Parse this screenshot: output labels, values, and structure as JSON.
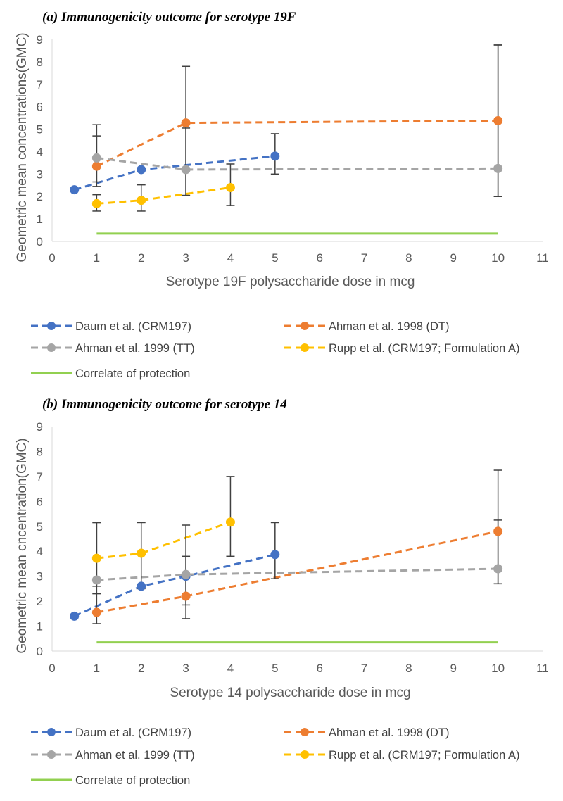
{
  "colors": {
    "daum": "#4472C4",
    "ahman1998": "#ED7D31",
    "ahman1999": "#A5A5A5",
    "rupp": "#FFC000",
    "correlate": "#92D050",
    "errorbar": "#404040"
  },
  "chart_data": [
    {
      "type": "line",
      "title": "(a) Immunogenicity outcome for serotype 19F",
      "xlabel": "Serotype 19F polysaccharide dose in mcg",
      "ylabel": "Geometric mean concentrations(GMC)",
      "xlim": [
        0,
        11
      ],
      "ylim": [
        0,
        9
      ],
      "xticks": [
        "0",
        "1",
        "2",
        "3",
        "4",
        "5",
        "6",
        "7",
        "8",
        "9",
        "10",
        "11"
      ],
      "yticks": [
        "0",
        "1",
        "2",
        "3",
        "4",
        "5",
        "6",
        "7",
        "8",
        "9"
      ],
      "series": [
        {
          "name": "Daum et al. (CRM197)",
          "color_key": "daum",
          "style": "dashed",
          "x": [
            0.5,
            2,
            5
          ],
          "y": [
            2.3,
            3.2,
            3.8
          ],
          "err_low": [
            null,
            null,
            3.0
          ],
          "err_high": [
            null,
            null,
            4.8
          ]
        },
        {
          "name": "Ahman et al. 1998 (DT)",
          "color_key": "ahman1998",
          "style": "dashed",
          "x": [
            1,
            3,
            10
          ],
          "y": [
            3.35,
            5.28,
            5.38
          ],
          "err_low": [
            2.45,
            2.05,
            2.0
          ],
          "err_high": [
            4.7,
            7.8,
            8.75
          ]
        },
        {
          "name": "Ahman et al. 1999 (TT)",
          "color_key": "ahman1999",
          "style": "dashed",
          "x": [
            1,
            3,
            10
          ],
          "y": [
            3.72,
            3.2,
            3.25
          ],
          "err_low": [
            2.65,
            2.05,
            2.0
          ],
          "err_high": [
            5.2,
            5.05,
            8.75
          ]
        },
        {
          "name": "Rupp et al. (CRM197; Formulation A)",
          "color_key": "rupp",
          "style": "dashed",
          "x": [
            1,
            2,
            4
          ],
          "y": [
            1.68,
            1.83,
            2.4
          ],
          "err_low": [
            1.35,
            1.35,
            1.6
          ],
          "err_high": [
            2.08,
            2.52,
            3.45
          ]
        },
        {
          "name": "Correlate of protection",
          "color_key": "correlate",
          "style": "solid",
          "x": [
            1,
            10
          ],
          "y": [
            0.35,
            0.35
          ]
        }
      ],
      "legend_position": "bottom"
    },
    {
      "type": "line",
      "title": "(b) Immunogenicity outcome for serotype 14",
      "xlabel": "Serotype 14 polysaccharide dose in mcg",
      "ylabel": "Geometric mean cncentration(GMC)",
      "xlim": [
        0,
        11
      ],
      "ylim": [
        0,
        9
      ],
      "xticks": [
        "0",
        "1",
        "2",
        "3",
        "4",
        "5",
        "6",
        "7",
        "8",
        "9",
        "10",
        "11"
      ],
      "yticks": [
        "0",
        "1",
        "2",
        "3",
        "4",
        "5",
        "6",
        "7",
        "8",
        "9"
      ],
      "series": [
        {
          "name": "Daum et al. (CRM197)",
          "color_key": "daum",
          "style": "dashed",
          "x": [
            0.5,
            2,
            3,
            5
          ],
          "y": [
            1.4,
            2.6,
            3.0,
            3.87
          ],
          "err_low": [
            null,
            null,
            null,
            2.9
          ],
          "err_high": [
            null,
            null,
            null,
            5.15
          ]
        },
        {
          "name": "Ahman et al. 1998 (DT)",
          "color_key": "ahman1998",
          "style": "dashed",
          "x": [
            1,
            3,
            10
          ],
          "y": [
            1.55,
            2.2,
            4.8
          ],
          "err_low": [
            1.1,
            1.3,
            2.7
          ],
          "err_high": [
            2.3,
            3.8,
            7.25
          ]
        },
        {
          "name": "Ahman et al. 1999 (TT)",
          "color_key": "ahman1999",
          "style": "dashed",
          "x": [
            1,
            3,
            10
          ],
          "y": [
            2.85,
            3.07,
            3.3
          ],
          "err_low": [
            2.3,
            1.85,
            2.7
          ],
          "err_high": [
            5.15,
            5.05,
            5.25
          ]
        },
        {
          "name": "Rupp et al. (CRM197; Formulation A)",
          "color_key": "rupp",
          "style": "dashed",
          "x": [
            1,
            2,
            4
          ],
          "y": [
            3.72,
            3.92,
            5.17
          ],
          "err_low": [
            2.6,
            2.5,
            3.8
          ],
          "err_high": [
            5.15,
            5.15,
            7.0
          ]
        },
        {
          "name": "Correlate of protection",
          "color_key": "correlate",
          "style": "solid",
          "x": [
            1,
            10
          ],
          "y": [
            0.35,
            0.35
          ]
        }
      ],
      "legend_position": "bottom"
    }
  ]
}
